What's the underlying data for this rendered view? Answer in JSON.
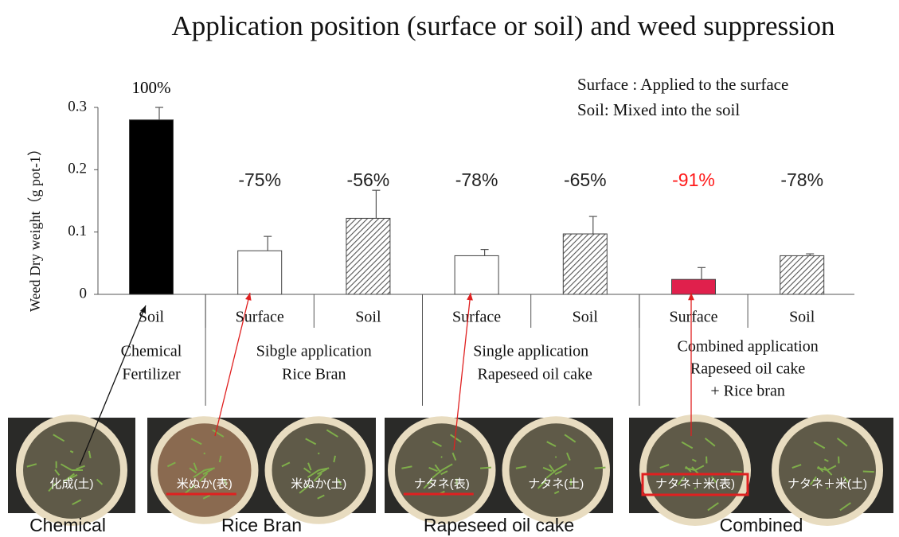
{
  "chart_data": {
    "type": "bar",
    "title": "Application position (surface or soil) and weed suppression",
    "y_label": "Weed Dry weight（g pot-1）",
    "notes": [
      "Surface : Applied to the surface",
      "Soil: Mixed into the soil"
    ],
    "categories": [
      "Soil",
      "Surface",
      "Soil",
      "Surface",
      "Soil",
      "Surface",
      "Soil"
    ],
    "values": [
      0.28,
      0.07,
      0.122,
      0.062,
      0.097,
      0.024,
      0.062
    ],
    "errors": [
      0.02,
      0.023,
      0.045,
      0.01,
      0.028,
      0.019,
      0.003
    ],
    "colors": [
      "#000000",
      "#ffffff",
      "hatch",
      "#ffffff",
      "hatch",
      "#e0204c",
      "hatch"
    ],
    "percent_labels": [
      "100%",
      "-75%",
      "-56%",
      "-78%",
      "-65%",
      "-91%",
      "-78%"
    ],
    "percent_colors": [
      "#000000",
      "#222222",
      "#222222",
      "#222222",
      "#222222",
      "#ff1a1a",
      "#222222"
    ],
    "groups": [
      {
        "lines": [
          "Chemical",
          "Fertilizer"
        ],
        "members": 1
      },
      {
        "lines": [
          "Sibgle application",
          "Rice Bran"
        ],
        "members": 2
      },
      {
        "lines": [
          "Single application",
          "Rapeseed oil cake"
        ],
        "members": 2
      },
      {
        "lines": [
          "Combined application",
          "Rapeseed oil cake",
          "+ Rice bran"
        ],
        "members": 2
      }
    ],
    "ylim": [
      0,
      0.3
    ],
    "yticks": [
      0,
      0.1,
      0.2,
      0.3
    ],
    "photos": [
      {
        "caption": "Chemical",
        "labels": [
          "化成(土)"
        ]
      },
      {
        "caption": "Rice Bran",
        "labels": [
          "米ぬか(表)",
          "米ぬか(土)"
        ]
      },
      {
        "caption": "Rapeseed oil cake",
        "labels": [
          "ナタネ(表)",
          "ナタネ(土)"
        ]
      },
      {
        "caption": "Combined",
        "labels": [
          "ナタネ＋米(表)",
          "ナタネ＋米(土)"
        ]
      }
    ]
  }
}
